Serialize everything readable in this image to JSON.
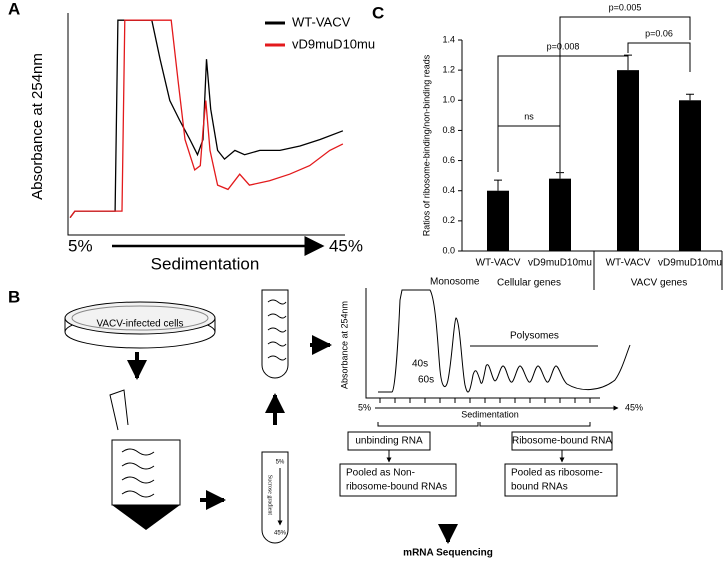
{
  "panel_labels": [
    "A",
    "B",
    "C"
  ],
  "chart_data": [
    {
      "type": "line",
      "xlabel": "Sedimentation",
      "ylabel": "Absorbance at 254nm",
      "xlim": [
        5,
        45
      ],
      "xticks": [
        {
          "value": 5,
          "label": "5%"
        },
        {
          "value": 45,
          "label": "45%"
        }
      ],
      "ylim": [
        0,
        1
      ],
      "legend": "upper right",
      "series": [
        {
          "name": "WT-VACV",
          "color": "#000000",
          "x": [
            5.3,
            6.0,
            11.8,
            12.2,
            17.1,
            18.3,
            19.7,
            21.1,
            22.6,
            23.7,
            24.5,
            25.0,
            25.6,
            26.6,
            27.6,
            29.1,
            30.5,
            32.7,
            35.6,
            38.5,
            41.4,
            44.7
          ],
          "values": [
            0.08,
            0.11,
            0.11,
            0.99,
            0.99,
            0.81,
            0.62,
            0.53,
            0.44,
            0.37,
            0.44,
            0.81,
            0.58,
            0.39,
            0.35,
            0.39,
            0.37,
            0.39,
            0.39,
            0.41,
            0.44,
            0.48
          ]
        },
        {
          "name": "vD9muD10mu",
          "color": "#e31a1c",
          "x": [
            5.3,
            6.0,
            12.8,
            13.2,
            19.9,
            20.9,
            21.9,
            23.3,
            24.1,
            24.5,
            24.9,
            25.5,
            26.6,
            28.1,
            29.8,
            31.2,
            34.1,
            37.0,
            39.9,
            42.8,
            44.7
          ],
          "values": [
            0.08,
            0.11,
            0.11,
            0.99,
            0.99,
            0.71,
            0.44,
            0.3,
            0.32,
            0.48,
            0.62,
            0.39,
            0.23,
            0.21,
            0.28,
            0.23,
            0.25,
            0.28,
            0.32,
            0.39,
            0.42
          ]
        }
      ]
    },
    {
      "type": "bar",
      "ylabel": "Ratios of ribosome-binding/non-binding reads",
      "categories": [
        "WT-VACV",
        "vD9muD10mu",
        "WT-VACV",
        "vD9muD10mu"
      ],
      "group_labels": [
        "Cellular genes",
        "VACV genes"
      ],
      "values": [
        0.4,
        0.48,
        1.2,
        1.0
      ],
      "errors": [
        0.07,
        0.04,
        0.1,
        0.04
      ],
      "color": "#000000",
      "ylim": [
        0,
        1.4
      ],
      "yticks": [
        {
          "value": 0,
          "label": "0.0"
        },
        0.2,
        0.4,
        0.6,
        0.8,
        {
          "value": 1,
          "label": "1.0"
        },
        1.2,
        1.4
      ],
      "annotations": [
        "ns",
        "p=0.008",
        "p=0.005",
        "p=0.06"
      ]
    }
  ],
  "diagram": {
    "dish_label": "VACV-infected cells",
    "tube_label": "Sucrose gradient",
    "tube_top": "5%",
    "tube_bottom": "45%",
    "profile_ylabel": "Absorbance at 254nm",
    "monosome": "Monosome",
    "s40": "40s",
    "s60": "60s",
    "polysomes": "Polysomes",
    "start": "5%",
    "end": "45%",
    "axis_label": "Sedimentation",
    "unbinding": "unbinding RNA",
    "bound": "Ribosome-bound RNA",
    "pool_nonbound": [
      "Pooled as Non-",
      "ribosome-bound RNAs"
    ],
    "pool_bound": [
      "Pooled as ribosome-",
      "bound RNAs"
    ],
    "sequencing": "mRNA Sequencing"
  }
}
